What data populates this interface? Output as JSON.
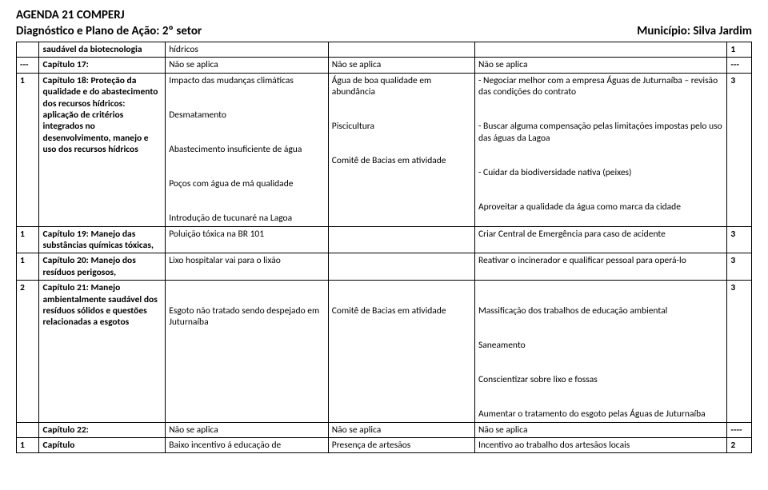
{
  "header": {
    "line1": "AGENDA 21 COMPERJ",
    "line2_left": "Diagnóstico e Plano de Ação: 2º setor",
    "line2_right": "Município: Silva Jardim"
  },
  "rows": [
    {
      "c1": "",
      "c2": "saudável da biotecnologia",
      "c3": "hídricos",
      "c4": "",
      "c5": "",
      "c6": "1"
    },
    {
      "c1": "---",
      "c2": "Capítulo 17:",
      "c3": "Não se aplica",
      "c4": "Não se aplica",
      "c5": "Não se aplica",
      "c6": "---"
    },
    {
      "c1": "1",
      "c2": "Capítulo 18: Proteção da qualidade e do abastecimento dos recursos hídricos: aplicação de critérios integrados no desenvolvimento, manejo e uso dos recursos hídricos",
      "c3": "Impacto das mudanças climáticas\n\nDesmatamento\n\nAbastecimento insuficiente de água\n\nPoços com água de má qualidade\n\nIntrodução de tucunaré na Lagoa",
      "c4": "Água de boa qualidade em abundância\n\nPiscicultura\n\nComitê de Bacias em atividade",
      "c5": "- Negociar melhor com a empresa Águas de Juturnaíba – revisão das condições do contrato\n\n- Buscar alguma compensação pelas limitações impostas pelo uso das águas da Lagoa\n\n- Cuidar da biodiversidade nativa (peixes)\n\nAproveitar a qualidade da água como marca da cidade",
      "c6": "3"
    },
    {
      "c1": "1",
      "c2": "Capítulo 19: Manejo das substâncias químicas tóxicas,",
      "c3": "Poluição tóxica na BR 101",
      "c4": "",
      "c5": "Criar Central de Emergência para caso de acidente",
      "c6": "3"
    },
    {
      "c1": "1",
      "c2": "Capítulo 20: Manejo dos resíduos perigosos,",
      "c3": "Lixo hospitalar vai para o lixão",
      "c4": "",
      "c5": "Reativar o incinerador e qualificar pessoal para operá-lo",
      "c6": "3"
    },
    {
      "c1": "2",
      "c2": "Capítulo 21: Manejo ambientalmente saudável dos resíduos sólidos e questões relacionadas a esgotos",
      "c3": "\nEsgoto não tratado sendo despejado em Juturnaíba",
      "c4": "\nComitê de Bacias em atividade",
      "c5": "\nMassificação dos trabalhos de educação ambiental\n\nSaneamento\n\nConscientizar sobre lixo e fossas\n\nAumentar o tratamento do esgoto pelas Águas de Juturnaíba",
      "c6": "3"
    },
    {
      "c1": "",
      "c2": "Capítulo 22:",
      "c3": "Não se aplica",
      "c4": "Não se aplica",
      "c5": "Não se aplica",
      "c6": "----"
    },
    {
      "c1": "1",
      "c2": "Capítulo",
      "c3": "Baixo incentivo á educação de",
      "c4": "Presença de artesãos",
      "c5": "Incentivo ao trabalho dos artesãos locais",
      "c6": "2"
    }
  ]
}
